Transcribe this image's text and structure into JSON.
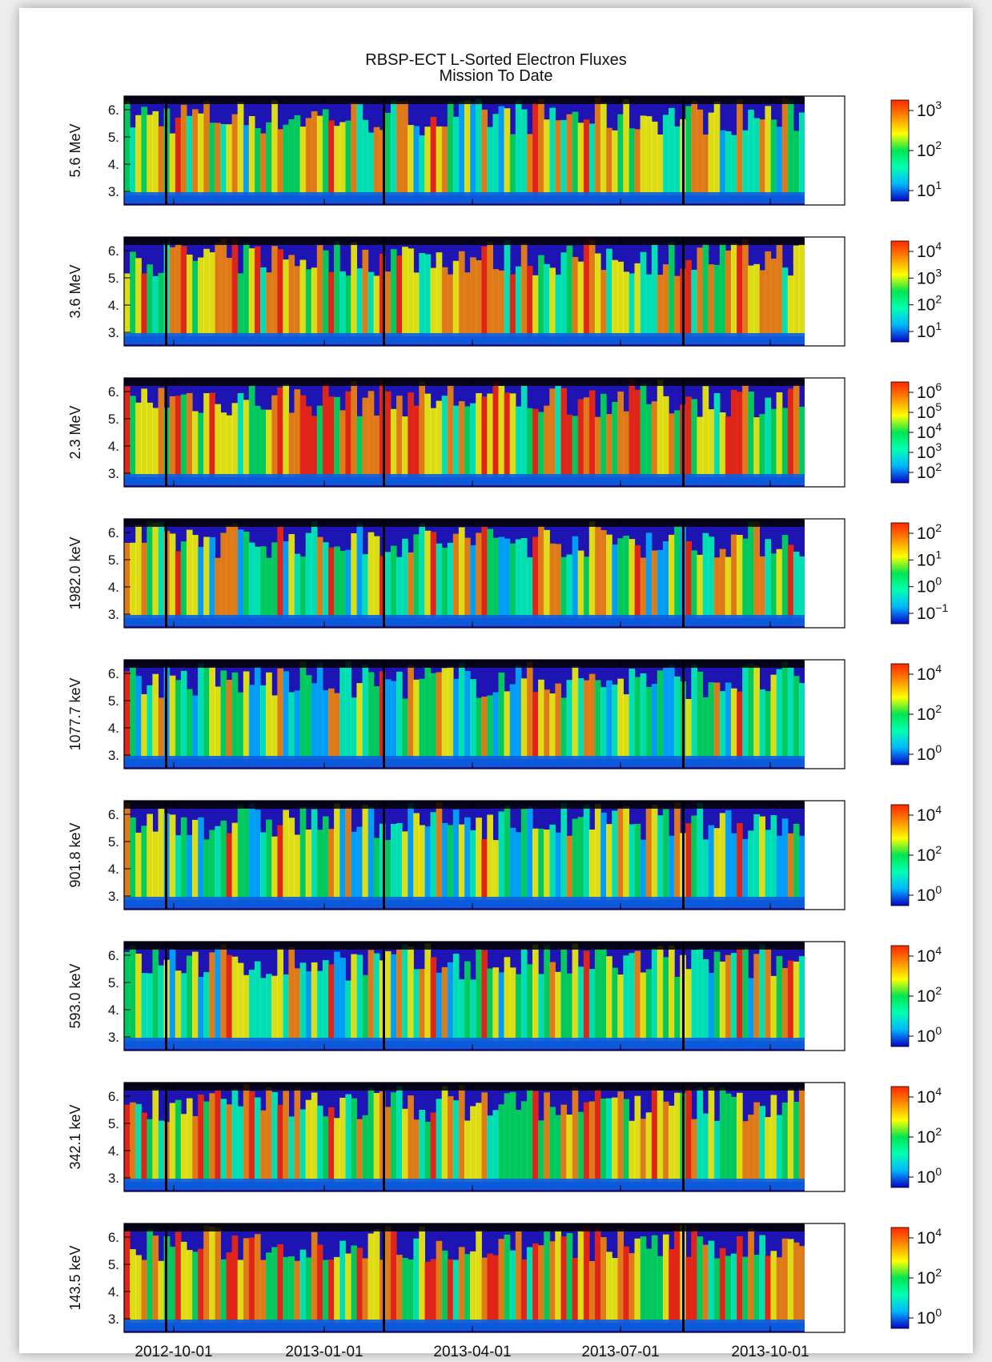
{
  "chart_data": {
    "type": "heatmap",
    "title": "RBSP-ECT L-Sorted Electron Fluxes",
    "subtitle": "Mission To Date",
    "x_ticks": [
      "2012-10-01",
      "2013-01-01",
      "2013-04-01",
      "2013-07-01",
      "2013-10-01"
    ],
    "y_ticks": [
      "3.",
      "4.",
      "5.",
      "6."
    ],
    "ylim": [
      2.5,
      6.5
    ],
    "colormap": [
      "#0a00c8",
      "#00b4ff",
      "#00ffb4",
      "#00e650",
      "#ffff00",
      "#ff8c00",
      "#ff2800"
    ],
    "panels": [
      {
        "label": "5.6 MeV",
        "colorbar": [
          {
            "base": "10",
            "exp": "1"
          },
          {
            "base": "10",
            "exp": "2"
          },
          {
            "base": "10",
            "exp": "3"
          }
        ]
      },
      {
        "label": "3.6 MeV",
        "colorbar": [
          {
            "base": "10",
            "exp": "1"
          },
          {
            "base": "10",
            "exp": "2"
          },
          {
            "base": "10",
            "exp": "3"
          },
          {
            "base": "10",
            "exp": "4"
          }
        ]
      },
      {
        "label": "2.3 MeV",
        "colorbar": [
          {
            "base": "10",
            "exp": "2"
          },
          {
            "base": "10",
            "exp": "3"
          },
          {
            "base": "10",
            "exp": "4"
          },
          {
            "base": "10",
            "exp": "5"
          },
          {
            "base": "10",
            "exp": "6"
          }
        ]
      },
      {
        "label": "1982.0 keV",
        "colorbar": [
          {
            "base": "10",
            "exp": "−1"
          },
          {
            "base": "10",
            "exp": "0"
          },
          {
            "base": "10",
            "exp": "1"
          },
          {
            "base": "10",
            "exp": "2"
          }
        ]
      },
      {
        "label": "1077.7 keV",
        "colorbar": [
          {
            "base": "10",
            "exp": "0"
          },
          {
            "base": "10",
            "exp": "2"
          },
          {
            "base": "10",
            "exp": "4"
          }
        ]
      },
      {
        "label": "901.8 keV",
        "colorbar": [
          {
            "base": "10",
            "exp": "0"
          },
          {
            "base": "10",
            "exp": "2"
          },
          {
            "base": "10",
            "exp": "4"
          }
        ]
      },
      {
        "label": "593.0 keV",
        "colorbar": [
          {
            "base": "10",
            "exp": "0"
          },
          {
            "base": "10",
            "exp": "2"
          },
          {
            "base": "10",
            "exp": "4"
          }
        ]
      },
      {
        "label": "342.1 keV",
        "colorbar": [
          {
            "base": "10",
            "exp": "0"
          },
          {
            "base": "10",
            "exp": "2"
          },
          {
            "base": "10",
            "exp": "4"
          }
        ]
      },
      {
        "label": "143.5 keV",
        "colorbar": [
          {
            "base": "10",
            "exp": "0"
          },
          {
            "base": "10",
            "exp": "2"
          },
          {
            "base": "10",
            "exp": "4"
          }
        ]
      }
    ]
  }
}
